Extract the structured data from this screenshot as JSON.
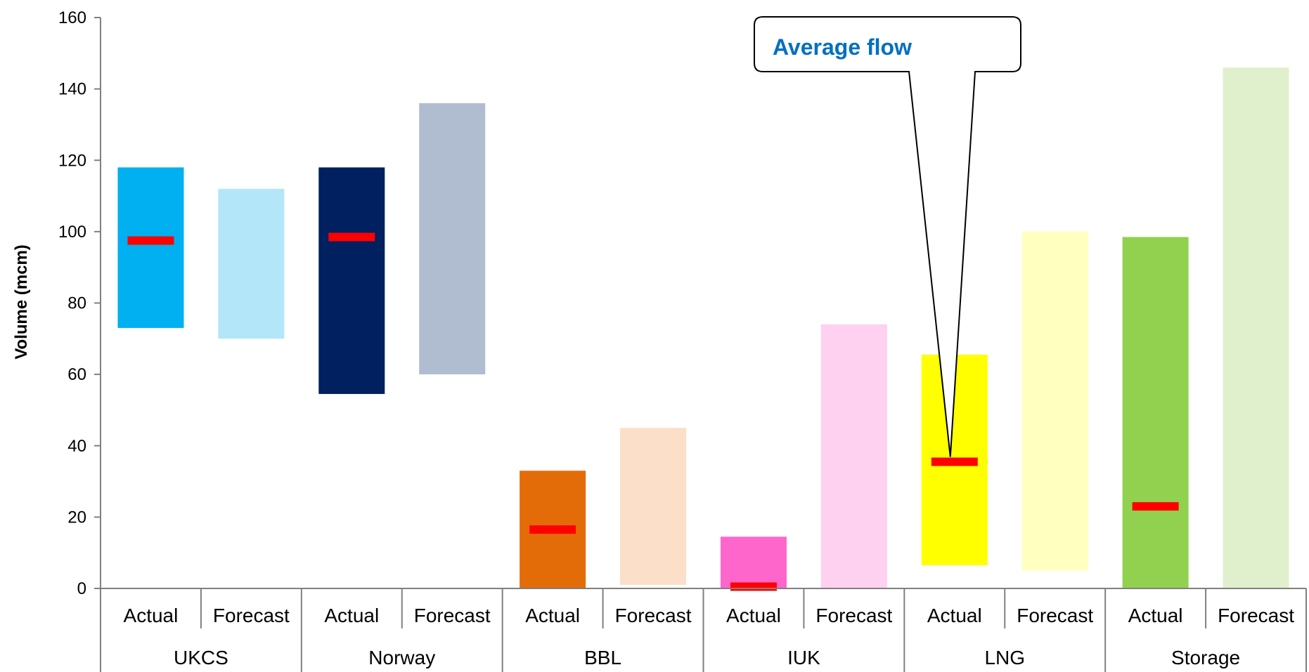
{
  "chart_data": {
    "type": "bar",
    "subtype": "floating-range",
    "ylabel": "Volume (mcm)",
    "ylim": [
      0,
      160
    ],
    "yticks": [
      0,
      20,
      40,
      60,
      80,
      100,
      120,
      140,
      160
    ],
    "grid": false,
    "groups": [
      "UKCS",
      "Norway",
      "BBL",
      "IUK",
      "LNG",
      "Storage"
    ],
    "subcategories": [
      "Actual",
      "Forecast"
    ],
    "bars": [
      {
        "group": "UKCS",
        "sub": "Actual",
        "low": 73,
        "high": 118,
        "average": 97.5,
        "color": "#00b0f0"
      },
      {
        "group": "UKCS",
        "sub": "Forecast",
        "low": 70,
        "high": 112,
        "average": null,
        "color": "#b3e6f8"
      },
      {
        "group": "Norway",
        "sub": "Actual",
        "low": 54.5,
        "high": 118,
        "average": 98.5,
        "color": "#002060"
      },
      {
        "group": "Norway",
        "sub": "Forecast",
        "low": 60,
        "high": 136,
        "average": null,
        "color": "#b0bccf"
      },
      {
        "group": "BBL",
        "sub": "Actual",
        "low": 0,
        "high": 33,
        "average": 16.5,
        "color": "#e36c09"
      },
      {
        "group": "BBL",
        "sub": "Forecast",
        "low": 1,
        "high": 45,
        "average": null,
        "color": "#fbdfc8"
      },
      {
        "group": "IUK",
        "sub": "Actual",
        "low": 0,
        "high": 14.5,
        "average": 0.5,
        "color": "#ff66cc"
      },
      {
        "group": "IUK",
        "sub": "Forecast",
        "low": 0,
        "high": 74,
        "average": null,
        "color": "#fdd1ef"
      },
      {
        "group": "LNG",
        "sub": "Actual",
        "low": 6.5,
        "high": 65.5,
        "average": 35.5,
        "color": "#ffff00"
      },
      {
        "group": "LNG",
        "sub": "Forecast",
        "low": 5,
        "high": 100,
        "average": null,
        "color": "#ffffbf"
      },
      {
        "group": "Storage",
        "sub": "Actual",
        "low": 0,
        "high": 98.5,
        "average": 23,
        "color": "#92d050"
      },
      {
        "group": "Storage",
        "sub": "Forecast",
        "low": 0,
        "high": 146,
        "average": null,
        "color": "#e0f0cd"
      }
    ],
    "average_marker_color": "#ff0000",
    "annotation": {
      "text": "Average flow",
      "points_to": {
        "group": "LNG",
        "sub": "Actual"
      }
    }
  }
}
